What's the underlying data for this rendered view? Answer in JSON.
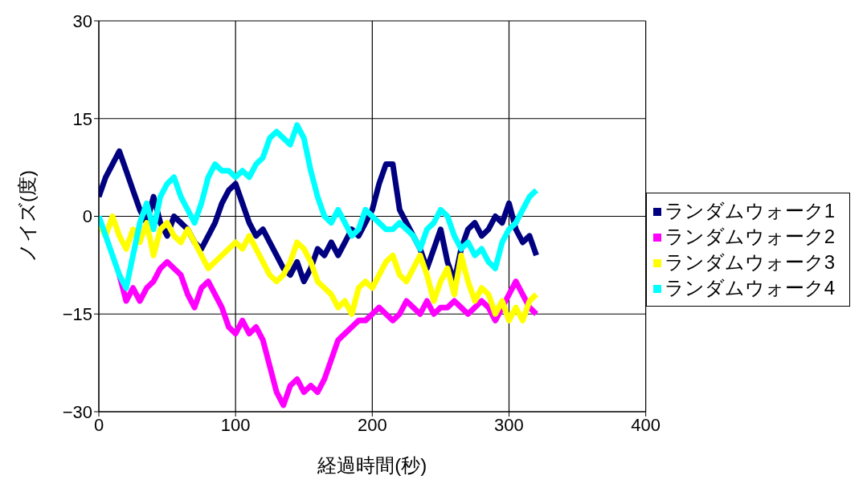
{
  "chart_data": {
    "type": "line",
    "xlabel": "経過時間(秒)",
    "ylabel": "ノイズ(度)",
    "xlim": [
      0,
      400
    ],
    "xticks": [
      0,
      100,
      200,
      300,
      400
    ],
    "ylim": [
      -30,
      30
    ],
    "yticks": [
      -30,
      -15,
      0,
      15,
      30
    ],
    "grid": true,
    "legend": "right",
    "marker": "none",
    "line_style": "solid",
    "x": [
      0,
      5,
      10,
      15,
      20,
      25,
      30,
      35,
      40,
      45,
      50,
      55,
      60,
      65,
      70,
      75,
      80,
      85,
      90,
      95,
      100,
      105,
      110,
      115,
      120,
      125,
      130,
      135,
      140,
      145,
      150,
      155,
      160,
      165,
      170,
      175,
      180,
      185,
      190,
      195,
      200,
      205,
      210,
      215,
      220,
      225,
      230,
      235,
      240,
      245,
      250,
      255,
      260,
      265,
      270,
      275,
      280,
      285,
      290,
      295,
      300,
      305,
      310,
      315,
      320
    ],
    "series": [
      {
        "name": "ランダムウォーク1",
        "color": "#000080",
        "values": [
          3,
          6,
          8,
          10,
          7,
          4,
          1,
          -1,
          3,
          -1,
          -3,
          0,
          -1,
          -2,
          -4,
          -5,
          -3,
          -1,
          2,
          4,
          5,
          2,
          -1,
          -3,
          -2,
          -4,
          -6,
          -8,
          -9,
          -7,
          -10,
          -8,
          -5,
          -6,
          -4,
          -6,
          -4,
          -2,
          -3,
          -1,
          1,
          5,
          8,
          8,
          1,
          -1,
          -3,
          -5,
          -8,
          -5,
          -2,
          -7,
          -10,
          -5,
          -2,
          -1,
          -3,
          -2,
          0,
          -1,
          2,
          -2,
          -4,
          -3,
          -6
        ]
      },
      {
        "name": "ランダムウォーク2",
        "color": "#ff00ff",
        "values": [
          null,
          null,
          null,
          -9,
          -13,
          -11,
          -13,
          -11,
          -10,
          -8,
          -7,
          -8,
          -9,
          -12,
          -14,
          -11,
          -10,
          -12,
          -14,
          -17,
          -18,
          -16,
          -18,
          -17,
          -19,
          -23,
          -27,
          -29,
          -26,
          -25,
          -27,
          -26,
          -27,
          -25,
          -22,
          -19,
          -18,
          -17,
          -16,
          -16,
          -15,
          -14,
          -15,
          -16,
          -15,
          -13,
          -14,
          -15,
          -13,
          -15,
          -14,
          -14,
          -13,
          -14,
          -15,
          -14,
          -13,
          -14,
          -16,
          -14,
          -12,
          -10,
          -12,
          -14,
          -15
        ]
      },
      {
        "name": "ランダムウォーク3",
        "color": "#ffff00",
        "values": [
          -1,
          -3,
          0,
          -3,
          -5,
          -2,
          -4,
          -1,
          -6,
          -2,
          -1,
          -3,
          -4,
          -2,
          -4,
          -6,
          -8,
          -7,
          -6,
          -5,
          -4,
          -5,
          -3,
          -5,
          -7,
          -9,
          -10,
          -9,
          -7,
          -4,
          -5,
          -7,
          -10,
          -11,
          -12,
          -14,
          -13,
          -15,
          -11,
          -10,
          -11,
          -9,
          -7,
          -6,
          -9,
          -10,
          -8,
          -6,
          -9,
          -13,
          -10,
          -8,
          -12,
          -6,
          -10,
          -13,
          -11,
          -12,
          -15,
          -13,
          -16,
          -14,
          -16,
          -13,
          -12
        ]
      },
      {
        "name": "ランダムウォーク4",
        "color": "#00ffff",
        "values": [
          0,
          -3,
          -6,
          -9,
          -11,
          -6,
          -1,
          2,
          -2,
          3,
          5,
          6,
          3,
          1,
          -1,
          2,
          6,
          8,
          7,
          7,
          6,
          7,
          6,
          8,
          9,
          12,
          13,
          12,
          11,
          14,
          12,
          7,
          3,
          0,
          -1,
          1,
          -1,
          -3,
          -2,
          1,
          0,
          -1,
          -2,
          -2,
          -1,
          -2,
          -3,
          -5,
          -2,
          -1,
          1,
          0,
          -3,
          -5,
          -4,
          -6,
          -5,
          -7,
          -8,
          -4,
          -2,
          -1,
          1,
          3,
          4
        ]
      }
    ]
  }
}
